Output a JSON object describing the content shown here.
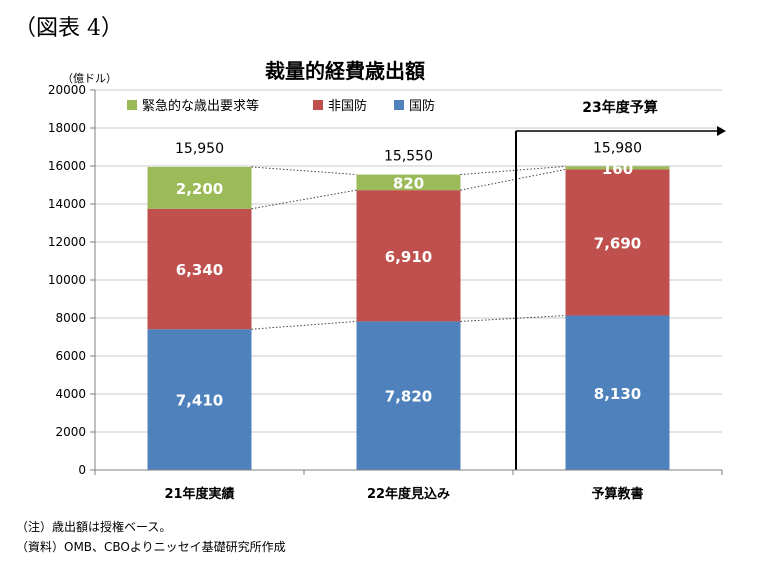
{
  "figure_label": "（図表 4）",
  "notes": {
    "line1": "（注）歳出額は授権ベース。",
    "line2": "（資料）OMB、CBOよりニッセイ基礎研究所作成"
  },
  "annotation": "23年度予算",
  "colors": {
    "emergency": "#9bbb59",
    "non_defense": "#c0504d",
    "defense": "#4f81bd"
  },
  "chart_data": {
    "type": "bar",
    "stacked": true,
    "title": "裁量的経費歳出額",
    "ylabel": "（億ドル）",
    "ylim": [
      0,
      20000
    ],
    "yticks": [
      0,
      2000,
      4000,
      6000,
      8000,
      10000,
      12000,
      14000,
      16000,
      18000,
      20000
    ],
    "categories": [
      "21年度実績",
      "22年度見込み",
      "予算教書"
    ],
    "legend_position": "top-left",
    "grid": true,
    "series": [
      {
        "name": "国防",
        "values": [
          7410,
          7820,
          8130
        ],
        "labels": [
          "7,410",
          "7,820",
          "8,130"
        ]
      },
      {
        "name": "非国防",
        "values": [
          6340,
          6910,
          7690
        ],
        "labels": [
          "6,340",
          "6,910",
          "7,690"
        ]
      },
      {
        "name": "緊急的な歳出要求等",
        "values": [
          2200,
          820,
          160
        ],
        "labels": [
          "2,200",
          "820",
          "160"
        ]
      }
    ],
    "totals": [
      "15,950",
      "15,550",
      "15,980"
    ],
    "legend_order": [
      "緊急的な歳出要求等",
      "非国防",
      "国防"
    ]
  }
}
